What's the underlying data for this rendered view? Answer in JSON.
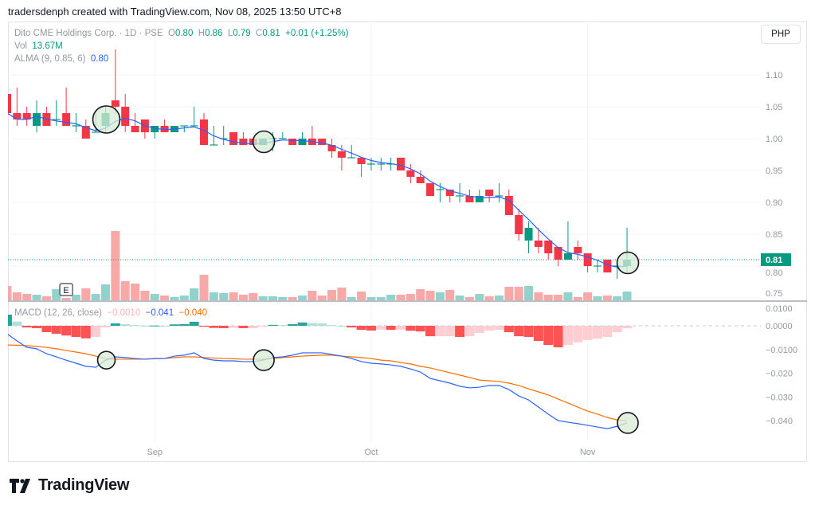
{
  "credit": "tradersdenph created with TradingView.com, Nov 08, 2025 13:50 UTC+8",
  "symbol": {
    "name": "Dito CME Holdings Corp. · 1D · PSE",
    "o_label": "O",
    "o": "0.80",
    "h_label": "H",
    "h": "0.86",
    "l_label": "L",
    "l": "0.79",
    "c_label": "C",
    "c": "0.81",
    "change": "+0.01 (+1.25%)"
  },
  "vol": {
    "label": "Vol",
    "value": "13.67M"
  },
  "alma": {
    "label": "ALMA (9, 0.85, 6)",
    "value": "0.80"
  },
  "macd": {
    "label": "MACD (12, 26, close)",
    "hist": "−0.0010",
    "macd": "−0.041",
    "signal": "−0.040"
  },
  "currency_button": "PHP",
  "last_price_label": "0.81",
  "event_marker": "E",
  "logo_text": "TradingView",
  "colors": {
    "up": "#089981",
    "down": "#f23645",
    "up_vol": "#92d2cc",
    "down_vol": "#f7a9a7",
    "alma": "#2962ff",
    "macd": "#2962ff",
    "signal": "#ff6d00",
    "annotation_fill": "#d8ecd4"
  },
  "chart_data": {
    "type": "candlestick",
    "price_ticks": [
      "1.10",
      "1.05",
      "1.00",
      "0.95",
      "0.90",
      "0.85",
      "0.80",
      "0.75"
    ],
    "price_tick_values": [
      1.1,
      1.05,
      1.0,
      0.95,
      0.9,
      0.85,
      0.8,
      0.75
    ],
    "macd_ticks": [
      "0.0100",
      "0.0000",
      "−0.0100",
      "−0.020",
      "−0.030",
      "−0.040"
    ],
    "macd_tick_values": [
      0.01,
      0,
      -0.01,
      -0.02,
      -0.03,
      -0.04
    ],
    "x_labels": [
      {
        "label": "Sep",
        "index": 15
      },
      {
        "label": "Oct",
        "index": 37
      },
      {
        "label": "Nov",
        "index": 59
      }
    ],
    "event_index": 6,
    "annotations": {
      "price_circles": [
        10,
        26,
        63
      ],
      "macd_circles": [
        10,
        26,
        63
      ]
    },
    "ohlc": [
      [
        1.07,
        1.07,
        1.04,
        1.04
      ],
      [
        1.04,
        1.08,
        1.02,
        1.03
      ],
      [
        1.04,
        1.05,
        1.02,
        1.03
      ],
      [
        1.02,
        1.06,
        1.01,
        1.04
      ],
      [
        1.04,
        1.05,
        1.02,
        1.02
      ],
      [
        1.03,
        1.06,
        1.02,
        1.03
      ],
      [
        1.04,
        1.08,
        1.02,
        1.02
      ],
      [
        1.02,
        1.04,
        1.01,
        1.02
      ],
      [
        1.02,
        1.03,
        1.0,
        1.0
      ],
      [
        1.01,
        1.04,
        1.01,
        1.01
      ],
      [
        1.02,
        1.05,
        1.01,
        1.04
      ],
      [
        1.06,
        1.14,
        1.04,
        1.05
      ],
      [
        1.05,
        1.07,
        1.01,
        1.02
      ],
      [
        1.02,
        1.04,
        1.01,
        1.01
      ],
      [
        1.03,
        1.03,
        1.0,
        1.01
      ],
      [
        1.01,
        1.02,
        1.0,
        1.02
      ],
      [
        1.02,
        1.03,
        1.01,
        1.01
      ],
      [
        1.01,
        1.02,
        1.01,
        1.02
      ],
      [
        1.02,
        1.02,
        1.01,
        1.02
      ],
      [
        1.02,
        1.05,
        1.02,
        1.02
      ],
      [
        1.03,
        1.04,
        0.99,
        0.99
      ],
      [
        0.99,
        1.02,
        0.99,
        0.99
      ],
      [
        1.0,
        1.02,
        0.99,
        1.0
      ],
      [
        1.01,
        1.01,
        0.99,
        0.99
      ],
      [
        1.0,
        1.01,
        0.99,
        0.99
      ],
      [
        1.0,
        1.0,
        0.99,
        0.99
      ],
      [
        0.99,
        1.0,
        0.99,
        1.0
      ],
      [
        1.0,
        1.01,
        0.98,
        1.0
      ],
      [
        1.0,
        1.01,
        1.0,
        1.0
      ],
      [
        1.0,
        1.0,
        0.99,
        0.99
      ],
      [
        0.99,
        1.01,
        0.99,
        1.0
      ],
      [
        1.0,
        1.02,
        0.99,
        0.99
      ],
      [
        1.0,
        1.0,
        0.99,
        0.99
      ],
      [
        0.99,
        1.0,
        0.97,
        0.98
      ],
      [
        0.98,
        0.99,
        0.95,
        0.97
      ],
      [
        0.97,
        0.99,
        0.97,
        0.97
      ],
      [
        0.97,
        0.97,
        0.94,
        0.96
      ],
      [
        0.96,
        0.97,
        0.95,
        0.96
      ],
      [
        0.96,
        0.97,
        0.95,
        0.96
      ],
      [
        0.96,
        0.97,
        0.95,
        0.96
      ],
      [
        0.97,
        0.97,
        0.95,
        0.95
      ],
      [
        0.95,
        0.96,
        0.93,
        0.94
      ],
      [
        0.94,
        0.95,
        0.93,
        0.93
      ],
      [
        0.93,
        0.93,
        0.91,
        0.91
      ],
      [
        0.92,
        0.93,
        0.9,
        0.92
      ],
      [
        0.92,
        0.92,
        0.9,
        0.91
      ],
      [
        0.91,
        0.93,
        0.9,
        0.91
      ],
      [
        0.91,
        0.92,
        0.9,
        0.9
      ],
      [
        0.9,
        0.92,
        0.9,
        0.91
      ],
      [
        0.92,
        0.92,
        0.9,
        0.91
      ],
      [
        0.91,
        0.93,
        0.9,
        0.91
      ],
      [
        0.91,
        0.92,
        0.88,
        0.88
      ],
      [
        0.88,
        0.89,
        0.84,
        0.85
      ],
      [
        0.84,
        0.87,
        0.82,
        0.86
      ],
      [
        0.84,
        0.86,
        0.82,
        0.83
      ],
      [
        0.84,
        0.84,
        0.81,
        0.82
      ],
      [
        0.83,
        0.83,
        0.8,
        0.81
      ],
      [
        0.81,
        0.87,
        0.81,
        0.82
      ],
      [
        0.83,
        0.84,
        0.81,
        0.82
      ],
      [
        0.82,
        0.82,
        0.79,
        0.8
      ],
      [
        0.8,
        0.81,
        0.79,
        0.8
      ],
      [
        0.81,
        0.81,
        0.79,
        0.79
      ],
      [
        0.8,
        0.8,
        0.78,
        0.8
      ],
      [
        0.8,
        0.86,
        0.79,
        0.81
      ]
    ],
    "volume_m": [
      22.4,
      12.4,
      9.9,
      8.7,
      6.2,
      17.4,
      3.7,
      8.7,
      18.6,
      9.9,
      24.9,
      108.1,
      29.8,
      26.1,
      14.9,
      9.9,
      7.5,
      5.0,
      7.5,
      18.6,
      39.8,
      12.4,
      11.2,
      12.4,
      8.7,
      11.2,
      6.2,
      6.2,
      5.0,
      5.0,
      7.5,
      14.9,
      7.5,
      16.2,
      19.9,
      5.0,
      13.7,
      5.0,
      5.0,
      8.7,
      8.7,
      9.9,
      17.4,
      14.9,
      12.4,
      16.2,
      7.5,
      5.0,
      9.9,
      6.2,
      7.5,
      21.1,
      21.1,
      22.4,
      12.4,
      8.7,
      8.7,
      12.4,
      5.0,
      12.4,
      6.2,
      7.5,
      6.2,
      13.67
    ],
    "macd_line": [
      -0.0034,
      -0.0064,
      -0.0091,
      -0.0097,
      -0.0118,
      -0.0131,
      -0.0145,
      -0.0158,
      -0.0171,
      -0.0175,
      -0.0145,
      -0.0131,
      -0.0134,
      -0.0138,
      -0.0141,
      -0.0138,
      -0.0138,
      -0.0128,
      -0.0124,
      -0.0114,
      -0.0138,
      -0.0145,
      -0.0148,
      -0.0148,
      -0.0151,
      -0.0151,
      -0.0145,
      -0.0134,
      -0.0131,
      -0.0124,
      -0.0114,
      -0.0114,
      -0.0114,
      -0.0121,
      -0.0128,
      -0.0138,
      -0.0151,
      -0.0158,
      -0.0161,
      -0.0165,
      -0.0171,
      -0.0182,
      -0.0195,
      -0.0222,
      -0.0232,
      -0.0242,
      -0.0255,
      -0.0262,
      -0.0259,
      -0.0252,
      -0.0252,
      -0.0269,
      -0.0296,
      -0.0313,
      -0.0343,
      -0.0373,
      -0.04,
      -0.0407,
      -0.0413,
      -0.042,
      -0.0427,
      -0.0434,
      -0.0424,
      -0.041
    ],
    "signal_line": [
      -0.0081,
      -0.0082,
      -0.0084,
      -0.0087,
      -0.0091,
      -0.0097,
      -0.0104,
      -0.0111,
      -0.0118,
      -0.0128,
      -0.0138,
      -0.0141,
      -0.0141,
      -0.0141,
      -0.0141,
      -0.0139,
      -0.0138,
      -0.0134,
      -0.0131,
      -0.0131,
      -0.0134,
      -0.0136,
      -0.0138,
      -0.0139,
      -0.0141,
      -0.0141,
      -0.0141,
      -0.0138,
      -0.0134,
      -0.0131,
      -0.0128,
      -0.0126,
      -0.0124,
      -0.0124,
      -0.0128,
      -0.0131,
      -0.0134,
      -0.0138,
      -0.0145,
      -0.0148,
      -0.0155,
      -0.0161,
      -0.0171,
      -0.0178,
      -0.0188,
      -0.0198,
      -0.0208,
      -0.0218,
      -0.0229,
      -0.0232,
      -0.0235,
      -0.0242,
      -0.0252,
      -0.0266,
      -0.0279,
      -0.0292,
      -0.0309,
      -0.0326,
      -0.0343,
      -0.036,
      -0.0373,
      -0.0387,
      -0.0397,
      -0.04
    ]
  }
}
